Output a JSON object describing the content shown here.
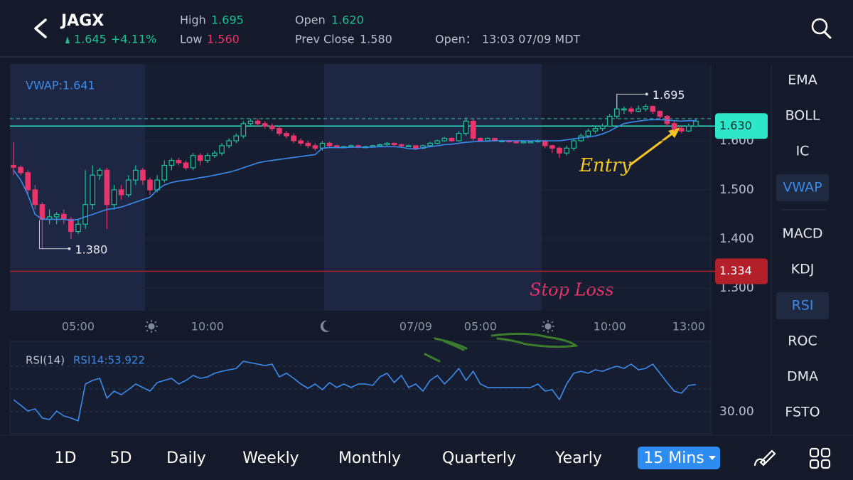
{
  "header": {
    "symbol": "JAGX"
  },
  "quote": {
    "price": 1.645,
    "change": "+4.11%",
    "high_label": "High",
    "high": "1.695",
    "low_label": "Low",
    "low": "1.560",
    "open_label": "Open",
    "open": "1.620",
    "prev_close_label": "Prev Close",
    "prev_close": "1.580",
    "open_time_label": "Open：",
    "open_time": "13:03 07/09 MDT"
  },
  "chart_data": [
    {
      "type": "candlestick",
      "categories": [
        null,
        null,
        null,
        null,
        null,
        null,
        null,
        null,
        null,
        "05:00",
        null,
        null,
        null,
        null,
        null,
        null,
        null,
        null,
        null,
        null,
        null,
        null,
        null,
        null,
        null,
        null,
        null,
        "10:00",
        null,
        null,
        null,
        null,
        null,
        null,
        null,
        null,
        null,
        null,
        null,
        null,
        null,
        null,
        null,
        null,
        null,
        null,
        null,
        null,
        null,
        null,
        null,
        null,
        null,
        null,
        null,
        null,
        "07/09",
        null,
        null,
        null,
        null,
        null,
        null,
        null,
        null,
        "05:00",
        null,
        null,
        null,
        null,
        null,
        null,
        null,
        null,
        null,
        null,
        null,
        null,
        null,
        null,
        null,
        null,
        null,
        "10:00",
        null,
        null,
        null,
        null,
        null,
        null,
        null,
        null,
        null,
        null,
        "13:00",
        null
      ],
      "candles": [
        [
          1.55,
          1.597,
          1.53,
          1.546
        ],
        [
          1.546,
          1.55,
          1.53,
          1.535
        ],
        [
          1.535,
          1.54,
          1.49,
          1.5
        ],
        [
          1.5,
          1.51,
          1.46,
          1.47
        ],
        [
          1.47,
          1.475,
          1.38,
          1.44
        ],
        [
          1.44,
          1.46,
          1.43,
          1.445
        ],
        [
          1.445,
          1.455,
          1.43,
          1.45
        ],
        [
          1.45,
          1.46,
          1.43,
          1.44
        ],
        [
          1.44,
          1.445,
          1.4,
          1.415
        ],
        [
          1.415,
          1.44,
          1.41,
          1.43
        ],
        [
          1.43,
          1.54,
          1.42,
          1.47
        ],
        [
          1.47,
          1.55,
          1.46,
          1.53
        ],
        [
          1.53,
          1.545,
          1.52,
          1.54
        ],
        [
          1.54,
          1.545,
          1.42,
          1.47
        ],
        [
          1.47,
          1.51,
          1.46,
          1.5
        ],
        [
          1.5,
          1.51,
          1.48,
          1.49
        ],
        [
          1.49,
          1.53,
          1.485,
          1.52
        ],
        [
          1.52,
          1.55,
          1.51,
          1.54
        ],
        [
          1.54,
          1.545,
          1.51,
          1.52
        ],
        [
          1.52,
          1.525,
          1.49,
          1.5
        ],
        [
          1.5,
          1.53,
          1.495,
          1.52
        ],
        [
          1.52,
          1.56,
          1.515,
          1.55
        ],
        [
          1.55,
          1.565,
          1.54,
          1.56
        ],
        [
          1.56,
          1.565,
          1.55,
          1.555
        ],
        [
          1.555,
          1.56,
          1.54,
          1.545
        ],
        [
          1.545,
          1.575,
          1.54,
          1.57
        ],
        [
          1.57,
          1.575,
          1.55,
          1.56
        ],
        [
          1.56,
          1.575,
          1.555,
          1.57
        ],
        [
          1.57,
          1.58,
          1.565,
          1.575
        ],
        [
          1.575,
          1.595,
          1.57,
          1.59
        ],
        [
          1.59,
          1.605,
          1.585,
          1.6
        ],
        [
          1.6,
          1.615,
          1.595,
          1.61
        ],
        [
          1.61,
          1.64,
          1.605,
          1.635
        ],
        [
          1.635,
          1.645,
          1.63,
          1.64
        ],
        [
          1.64,
          1.645,
          1.63,
          1.635
        ],
        [
          1.635,
          1.64,
          1.625,
          1.63
        ],
        [
          1.63,
          1.635,
          1.62,
          1.625
        ],
        [
          1.625,
          1.63,
          1.61,
          1.615
        ],
        [
          1.615,
          1.62,
          1.605,
          1.61
        ],
        [
          1.61,
          1.615,
          1.595,
          1.6
        ],
        [
          1.6,
          1.605,
          1.59,
          1.595
        ],
        [
          1.595,
          1.6,
          1.585,
          1.59
        ],
        [
          1.59,
          1.595,
          1.58,
          1.585
        ],
        [
          1.585,
          1.6,
          1.58,
          1.595
        ],
        [
          1.595,
          1.598,
          1.585,
          1.59
        ],
        [
          1.59,
          1.592,
          1.585,
          1.588
        ],
        [
          1.588,
          1.59,
          1.585,
          1.588
        ],
        [
          1.588,
          1.592,
          1.586,
          1.59
        ],
        [
          1.59,
          1.592,
          1.585,
          1.588
        ],
        [
          1.588,
          1.59,
          1.586,
          1.588
        ],
        [
          1.588,
          1.592,
          1.586,
          1.59
        ],
        [
          1.59,
          1.594,
          1.588,
          1.592
        ],
        [
          1.592,
          1.597,
          1.59,
          1.595
        ],
        [
          1.595,
          1.596,
          1.59,
          1.592
        ],
        [
          1.592,
          1.594,
          1.588,
          1.59
        ],
        [
          1.59,
          1.592,
          1.588,
          1.59
        ],
        [
          1.59,
          1.59,
          1.582,
          1.585
        ],
        [
          1.585,
          1.592,
          1.583,
          1.59
        ],
        [
          1.59,
          1.598,
          1.588,
          1.595
        ],
        [
          1.595,
          1.602,
          1.593,
          1.6
        ],
        [
          1.6,
          1.608,
          1.598,
          1.605
        ],
        [
          1.605,
          1.607,
          1.598,
          1.6
        ],
        [
          1.6,
          1.62,
          1.598,
          1.615
        ],
        [
          1.615,
          1.648,
          1.61,
          1.64
        ],
        [
          1.64,
          1.645,
          1.6,
          1.605
        ],
        [
          1.605,
          1.607,
          1.598,
          1.6
        ],
        [
          1.6,
          1.607,
          1.598,
          1.605
        ],
        [
          1.605,
          1.606,
          1.598,
          1.6
        ],
        [
          1.6,
          1.602,
          1.598,
          1.6
        ],
        [
          1.6,
          1.601,
          1.596,
          1.598
        ],
        [
          1.598,
          1.6,
          1.595,
          1.597
        ],
        [
          1.597,
          1.6,
          1.595,
          1.598
        ],
        [
          1.598,
          1.6,
          1.596,
          1.598
        ],
        [
          1.598,
          1.603,
          1.596,
          1.6
        ],
        [
          1.6,
          1.602,
          1.585,
          1.59
        ],
        [
          1.59,
          1.592,
          1.575,
          1.585
        ],
        [
          1.585,
          1.588,
          1.565,
          1.575
        ],
        [
          1.575,
          1.59,
          1.57,
          1.585
        ],
        [
          1.585,
          1.605,
          1.58,
          1.6
        ],
        [
          1.6,
          1.615,
          1.598,
          1.61
        ],
        [
          1.61,
          1.625,
          1.605,
          1.62
        ],
        [
          1.62,
          1.63,
          1.615,
          1.625
        ],
        [
          1.625,
          1.635,
          1.62,
          1.63
        ],
        [
          1.63,
          1.655,
          1.628,
          1.65
        ],
        [
          1.65,
          1.695,
          1.645,
          1.665
        ],
        [
          1.665,
          1.67,
          1.655,
          1.665
        ],
        [
          1.665,
          1.67,
          1.655,
          1.66
        ],
        [
          1.66,
          1.672,
          1.658,
          1.665
        ],
        [
          1.665,
          1.675,
          1.66,
          1.67
        ],
        [
          1.67,
          1.672,
          1.655,
          1.66
        ],
        [
          1.66,
          1.662,
          1.645,
          1.65
        ],
        [
          1.65,
          1.652,
          1.63,
          1.635
        ],
        [
          1.635,
          1.64,
          1.62,
          1.625
        ],
        [
          1.625,
          1.63,
          1.615,
          1.62
        ],
        [
          1.62,
          1.635,
          1.618,
          1.63
        ],
        [
          1.63,
          1.645,
          1.628,
          1.64
        ]
      ],
      "up_color": "#1fbf9a",
      "down_color": "#e8356b",
      "series": [
        {
          "name": "VWAP:1.641",
          "color": "#3b8beb",
          "values": [
            1.54,
            1.52,
            1.49,
            1.45,
            1.44,
            1.44,
            1.44,
            1.44,
            1.438,
            1.44,
            1.445,
            1.45,
            1.455,
            1.46,
            1.462,
            1.465,
            1.47,
            1.475,
            1.48,
            1.485,
            1.5,
            1.51,
            1.515,
            1.518,
            1.52,
            1.522,
            1.525,
            1.527,
            1.53,
            1.533,
            1.536,
            1.54,
            1.545,
            1.55,
            1.555,
            1.558,
            1.56,
            1.562,
            1.564,
            1.566,
            1.568,
            1.57,
            1.572,
            1.585,
            1.586,
            1.586,
            1.586,
            1.587,
            1.587,
            1.587,
            1.587,
            1.588,
            1.588,
            1.588,
            1.587,
            1.584,
            1.583,
            1.586,
            1.588,
            1.59,
            1.592,
            1.593,
            1.595,
            1.597,
            1.598,
            1.599,
            1.599,
            1.6,
            1.6,
            1.6,
            1.6,
            1.6,
            1.6,
            1.6,
            1.6,
            1.6,
            1.6,
            1.602,
            1.604,
            1.606,
            1.608,
            1.61,
            1.614,
            1.62,
            1.628,
            1.635,
            1.638,
            1.64,
            1.642,
            1.643,
            1.643,
            1.642,
            1.641,
            1.64,
            1.641,
            1.641
          ]
        }
      ],
      "ylim": [
        1.2536,
        1.7565
      ],
      "yticks": [
        {
          "value": 1.3,
          "label": "1.300"
        },
        {
          "value": 1.4,
          "label": "1.400"
        },
        {
          "value": 1.5,
          "label": "1.500"
        },
        {
          "value": 1.6,
          "label": "1.600"
        }
      ],
      "price_lines": [
        {
          "value": 1.63,
          "label": "1.630",
          "color": "#2ee6c8"
        },
        {
          "value": 1.334,
          "label": "1.334",
          "color": "#b3202a"
        }
      ],
      "high_mark": {
        "value": 1.695,
        "label": "1.695"
      },
      "low_mark": {
        "value": 1.38,
        "label": "1.380"
      },
      "annotations": [
        "Entry",
        "Stop Loss"
      ]
    },
    {
      "type": "line",
      "title": "RSI(14)",
      "series": [
        {
          "name": "RSI14:53.922",
          "color": "#3b8beb",
          "values": [
            40.6,
            35.6,
            30.6,
            32.5,
            24.4,
            23.1,
            30.6,
            26.3,
            24.4,
            21.9,
            54.4,
            57.5,
            59.4,
            41.9,
            48.1,
            45,
            49.4,
            54.4,
            51.3,
            48.1,
            55.6,
            57.5,
            59.4,
            54.4,
            57.5,
            61.9,
            59.4,
            60.6,
            63.8,
            65.6,
            66.9,
            68.1,
            74.4,
            73.1,
            71.9,
            70.6,
            71.9,
            60.6,
            63.8,
            59.4,
            54.4,
            50.6,
            54.4,
            49.4,
            55.6,
            51.3,
            54.4,
            51.3,
            54.4,
            54.4,
            53.1,
            60.6,
            63.8,
            55.6,
            61.9,
            51.3,
            54.4,
            48.1,
            57.5,
            61.9,
            54.4,
            60.6,
            68.1,
            57.5,
            65.6,
            54.4,
            51.3,
            51.3,
            51.3,
            51.3,
            51.3,
            51.3,
            51.3,
            54.4,
            48.1,
            49.4,
            40.6,
            54.4,
            63.8,
            65.6,
            63.8,
            66.9,
            65.6,
            68.1,
            70,
            68.1,
            71.9,
            66.9,
            68.1,
            71.9,
            63.8,
            55.6,
            48.1,
            46.3,
            53.1,
            53.922
          ]
        }
      ],
      "ylim": [
        10.6,
        91.9
      ],
      "yticks": [
        {
          "value": 30,
          "label": "30.00"
        }
      ],
      "guide_lines": [
        50,
        70
      ]
    }
  ],
  "indicators": {
    "items": [
      {
        "label": "EMA",
        "active": false
      },
      {
        "label": "BOLL",
        "active": false
      },
      {
        "label": "IC",
        "active": false
      },
      {
        "label": "VWAP",
        "active": true
      },
      {
        "label": "MACD",
        "active": false
      },
      {
        "label": "KDJ",
        "active": false
      },
      {
        "label": "RSI",
        "active": true
      },
      {
        "label": "ROC",
        "active": false
      },
      {
        "label": "DMA",
        "active": false
      },
      {
        "label": "FSTO",
        "active": false
      }
    ]
  },
  "timeframes": {
    "items": [
      {
        "label": "1D",
        "active": false
      },
      {
        "label": "5D",
        "active": false
      },
      {
        "label": "Daily",
        "active": false
      },
      {
        "label": "Weekly",
        "active": false
      },
      {
        "label": "Monthly",
        "active": false
      },
      {
        "label": "Quarterly",
        "active": false
      },
      {
        "label": "Yearly",
        "active": false
      },
      {
        "label": "15 Mins",
        "active": true
      }
    ]
  }
}
